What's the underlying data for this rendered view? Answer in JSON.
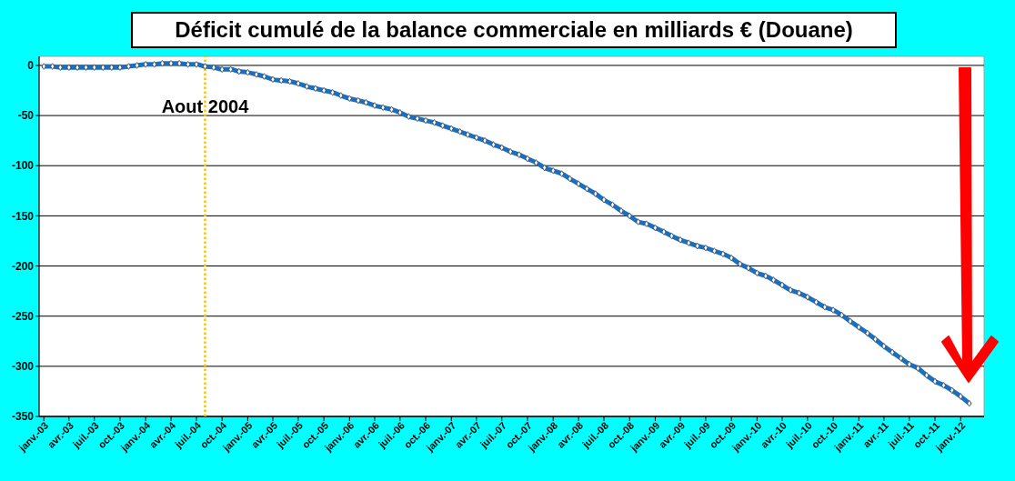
{
  "chart_data": {
    "type": "line",
    "title": "Déficit cumulé de la balance commerciale en milliards € (Douane)",
    "x": [
      "2003-01",
      "2003-02",
      "2003-03",
      "2003-04",
      "2003-05",
      "2003-06",
      "2003-07",
      "2003-08",
      "2003-09",
      "2003-10",
      "2003-11",
      "2003-12",
      "2004-01",
      "2004-02",
      "2004-03",
      "2004-04",
      "2004-05",
      "2004-06",
      "2004-07",
      "2004-08",
      "2004-09",
      "2004-10",
      "2004-11",
      "2004-12",
      "2005-01",
      "2005-02",
      "2005-03",
      "2005-04",
      "2005-05",
      "2005-06",
      "2005-07",
      "2005-08",
      "2005-09",
      "2005-10",
      "2005-11",
      "2005-12",
      "2006-01",
      "2006-02",
      "2006-03",
      "2006-04",
      "2006-05",
      "2006-06",
      "2006-07",
      "2006-08",
      "2006-09",
      "2006-10",
      "2006-11",
      "2006-12",
      "2007-01",
      "2007-02",
      "2007-03",
      "2007-04",
      "2007-05",
      "2007-06",
      "2007-07",
      "2007-08",
      "2007-09",
      "2007-10",
      "2007-11",
      "2007-12",
      "2008-01",
      "2008-02",
      "2008-03",
      "2008-04",
      "2008-05",
      "2008-06",
      "2008-07",
      "2008-08",
      "2008-09",
      "2008-10",
      "2008-11",
      "2008-12",
      "2009-01",
      "2009-02",
      "2009-03",
      "2009-04",
      "2009-05",
      "2009-06",
      "2009-07",
      "2009-08",
      "2009-09",
      "2009-10",
      "2009-11",
      "2009-12",
      "2010-01",
      "2010-02",
      "2010-03",
      "2010-04",
      "2010-05",
      "2010-06",
      "2010-07",
      "2010-08",
      "2010-09",
      "2010-10",
      "2010-11",
      "2010-12",
      "2011-01",
      "2011-02",
      "2011-03",
      "2011-04",
      "2011-05",
      "2011-06",
      "2011-07",
      "2011-08",
      "2011-09",
      "2011-10",
      "2011-11",
      "2011-12",
      "2012-01",
      "2012-02"
    ],
    "series": [
      {
        "color": "#1a6fc0",
        "values": [
          -1,
          -1,
          -2,
          -2,
          -2,
          -2,
          -2,
          -2,
          -2,
          -2,
          -1,
          0,
          1,
          1,
          2,
          2,
          2,
          1,
          1,
          -1,
          -2,
          -4,
          -4,
          -6,
          -7,
          -9,
          -11,
          -14,
          -15,
          -16,
          -18,
          -21,
          -23,
          -25,
          -27,
          -30,
          -33,
          -35,
          -37,
          -40,
          -42,
          -44,
          -47,
          -51,
          -53,
          -55,
          -57,
          -60,
          -63,
          -66,
          -69,
          -72,
          -75,
          -79,
          -82,
          -86,
          -89,
          -93,
          -97,
          -102,
          -105,
          -108,
          -113,
          -118,
          -123,
          -128,
          -134,
          -139,
          -145,
          -150,
          -156,
          -158,
          -162,
          -166,
          -170,
          -174,
          -177,
          -180,
          -182,
          -185,
          -188,
          -192,
          -198,
          -202,
          -207,
          -210,
          -214,
          -219,
          -224,
          -227,
          -231,
          -236,
          -241,
          -244,
          -249,
          -255,
          -261,
          -267,
          -273,
          -280,
          -286,
          -292,
          -298,
          -302,
          -309,
          -315,
          -319,
          -324,
          -330,
          -337
        ]
      }
    ],
    "xlim": [
      "2002-12-15",
      "2012-03-25"
    ],
    "xticks": [
      {
        "value": "2003-01",
        "label": "janv.-03"
      },
      {
        "value": "2003-04",
        "label": "avr.-03"
      },
      {
        "value": "2003-07",
        "label": "juil.-03"
      },
      {
        "value": "2003-10",
        "label": "oct.-03"
      },
      {
        "value": "2004-01",
        "label": "janv.-04"
      },
      {
        "value": "2004-04",
        "label": "avr.-04"
      },
      {
        "value": "2004-07",
        "label": "juil.-04"
      },
      {
        "value": "2004-10",
        "label": "oct.-04"
      },
      {
        "value": "2005-01",
        "label": "janv.-05"
      },
      {
        "value": "2005-04",
        "label": "avr.-05"
      },
      {
        "value": "2005-07",
        "label": "juil.-05"
      },
      {
        "value": "2005-10",
        "label": "oct.-05"
      },
      {
        "value": "2006-01",
        "label": "janv.-06"
      },
      {
        "value": "2006-04",
        "label": "avr.-06"
      },
      {
        "value": "2006-07",
        "label": "juil.-06"
      },
      {
        "value": "2006-10",
        "label": "oct.-06"
      },
      {
        "value": "2007-01",
        "label": "janv.-07"
      },
      {
        "value": "2007-04",
        "label": "avr.-07"
      },
      {
        "value": "2007-07",
        "label": "juil.-07"
      },
      {
        "value": "2007-10",
        "label": "oct.-07"
      },
      {
        "value": "2008-01",
        "label": "janv.-08"
      },
      {
        "value": "2008-04",
        "label": "avr.-08"
      },
      {
        "value": "2008-07",
        "label": "juil.-08"
      },
      {
        "value": "2008-10",
        "label": "oct.-08"
      },
      {
        "value": "2009-01",
        "label": "janv.-09"
      },
      {
        "value": "2009-04",
        "label": "avr.-09"
      },
      {
        "value": "2009-07",
        "label": "juil.-09"
      },
      {
        "value": "2009-10",
        "label": "oct.-09"
      },
      {
        "value": "2010-01",
        "label": "janv.-10"
      },
      {
        "value": "2010-04",
        "label": "avr.-10"
      },
      {
        "value": "2010-07",
        "label": "juil.-10"
      },
      {
        "value": "2010-10",
        "label": "oct.-10"
      },
      {
        "value": "2011-01",
        "label": "janv.-11"
      },
      {
        "value": "2011-04",
        "label": "avr.-11"
      },
      {
        "value": "2011-07",
        "label": "juil.-11"
      },
      {
        "value": "2011-10",
        "label": "oct.-11"
      },
      {
        "value": "2012-01",
        "label": "janv.-12"
      }
    ],
    "ylim": [
      -350,
      9
    ],
    "yticks": [
      -350,
      -300,
      -250,
      -200,
      -150,
      -100,
      -50,
      0
    ],
    "grid": "y",
    "marker": "diamond",
    "line_style": "solid",
    "ref_lines": [
      {
        "axis": "x",
        "value": "2004-08",
        "label": "Aout 2004",
        "color": "#ffc000",
        "line_style": "dotted"
      }
    ]
  }
}
